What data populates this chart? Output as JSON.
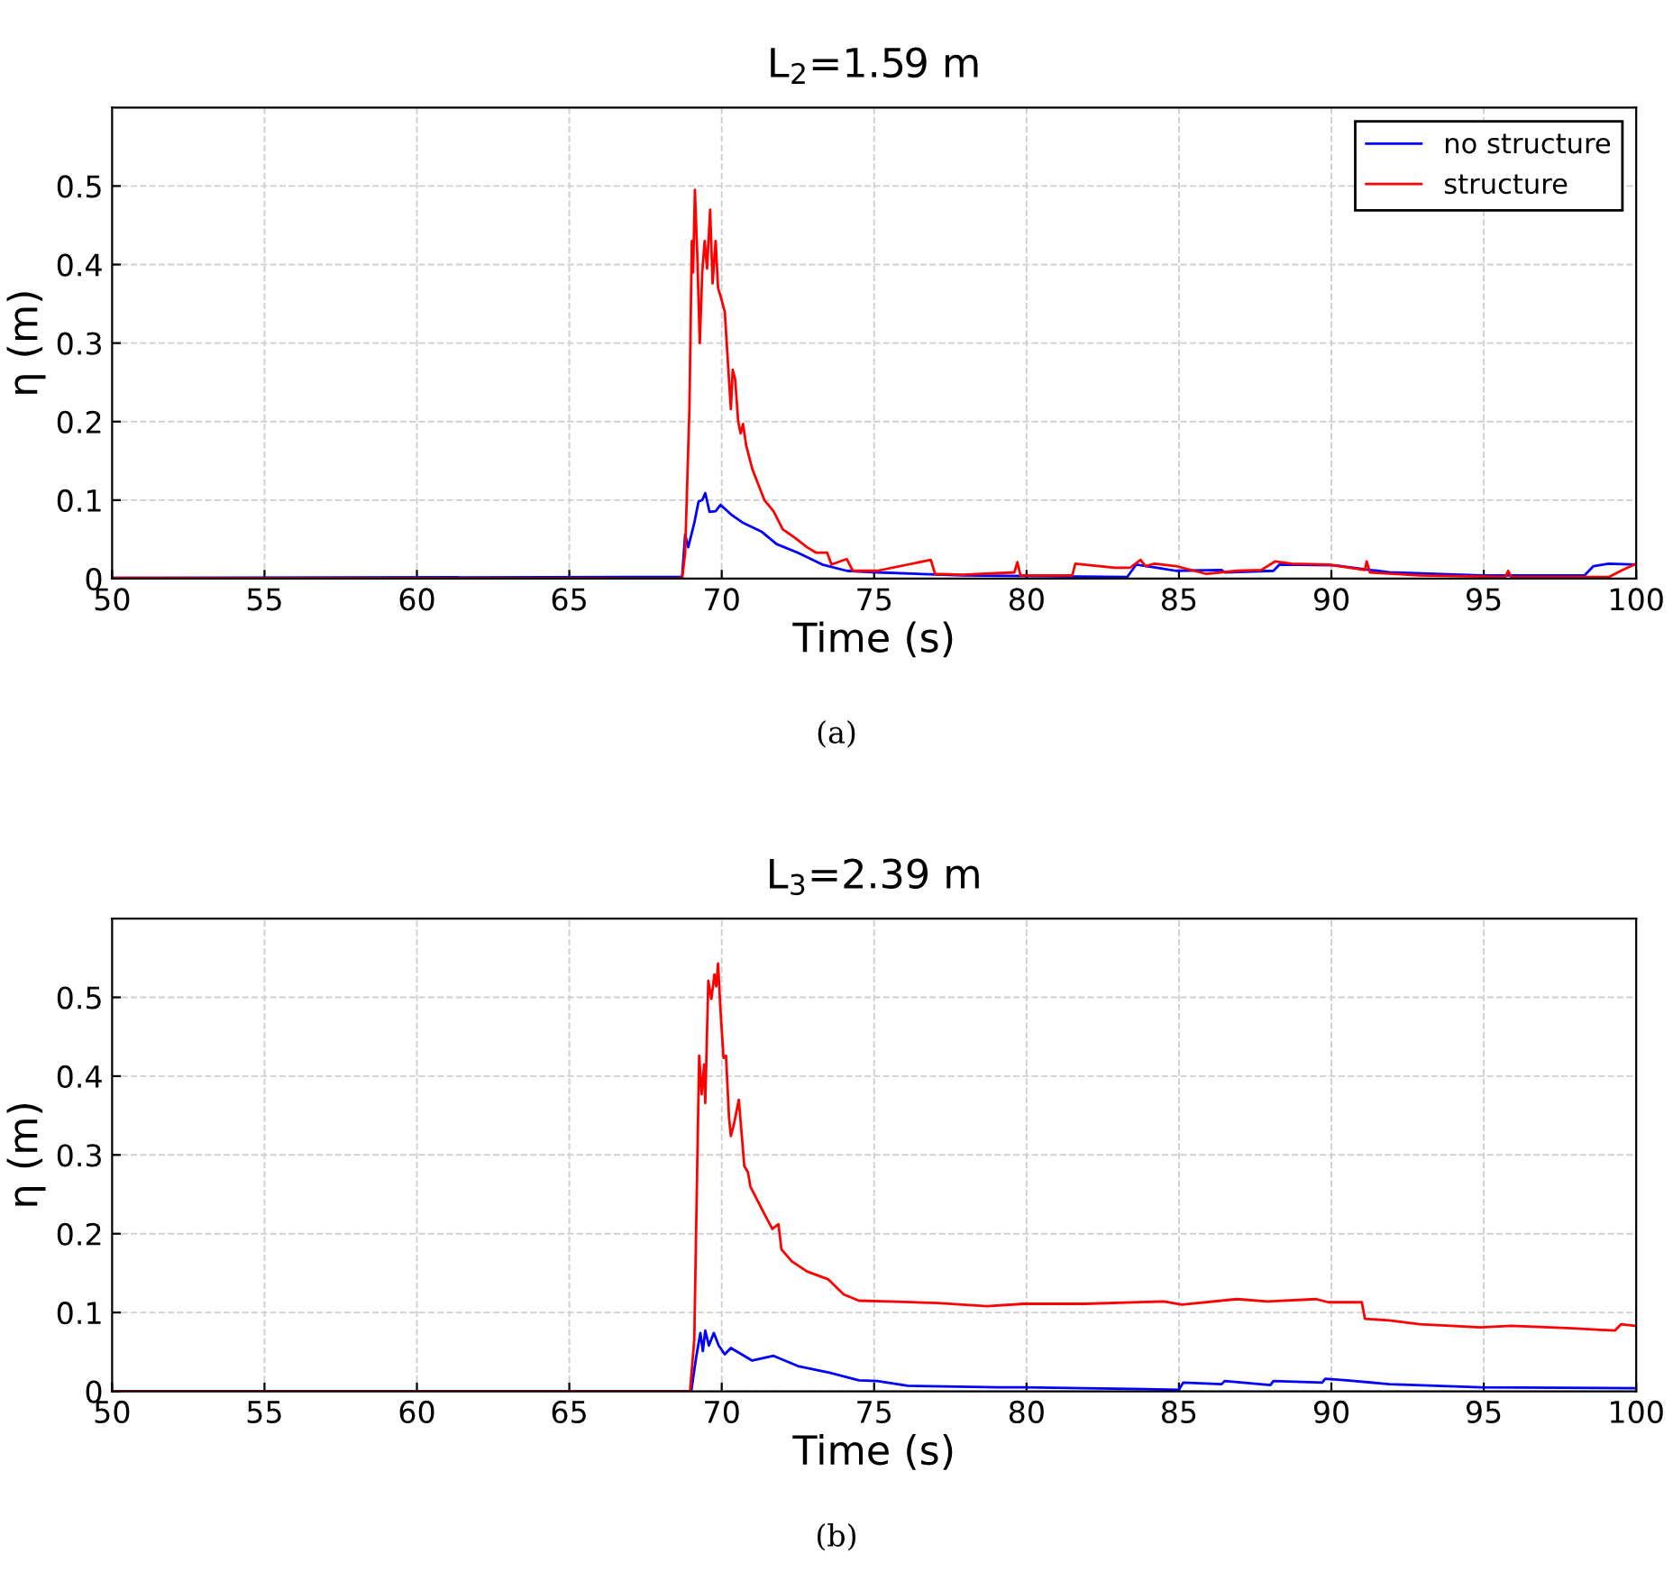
{
  "chart_data": [
    {
      "type": "line",
      "title": "L$_{2}$=1.59 m",
      "xlabel": "Time (s)",
      "ylabel": "η (m)",
      "xlim": [
        50,
        100
      ],
      "xticks": [
        50,
        55,
        60,
        65,
        70,
        75,
        80,
        85,
        90,
        95,
        100
      ],
      "ylim": [
        0,
        0.6
      ],
      "yticks": [
        0,
        0.1,
        0.2,
        0.3,
        0.4,
        0.5
      ],
      "grid": true,
      "legend": "top right",
      "annotations": [
        "(a)"
      ],
      "series": [
        {
          "name": "no structure",
          "color": "#0000ff",
          "x": [
            50,
            67.1,
            68.7,
            68.8,
            68.9,
            69.1,
            69.24,
            69.36,
            69.46,
            69.6,
            69.8,
            69.96,
            70.3,
            70.7,
            71.3,
            71.8,
            72.5,
            73.3,
            74.1,
            75.1,
            77.9,
            83.3,
            83.6,
            84.9,
            86.4,
            86.5,
            88.1,
            88.3,
            90.1,
            91.9,
            94.9,
            98.3,
            98.6,
            99.1,
            100
          ],
          "values": [
            0.001,
            0.002,
            0.002,
            0.056,
            0.04,
            0.071,
            0.098,
            0.1,
            0.109,
            0.085,
            0.086,
            0.094,
            0.082,
            0.071,
            0.06,
            0.044,
            0.033,
            0.018,
            0.01,
            0.008,
            0.004,
            0.002,
            0.018,
            0.01,
            0.011,
            0.008,
            0.01,
            0.018,
            0.017,
            0.008,
            0.004,
            0.004,
            0.016,
            0.019,
            0.018
          ]
        },
        {
          "name": "structure",
          "color": "#ff0000",
          "x": [
            50,
            68.7,
            68.8,
            68.94,
            69.02,
            69.06,
            69.12,
            69.2,
            69.28,
            69.36,
            69.44,
            69.52,
            69.62,
            69.7,
            69.8,
            69.88,
            69.96,
            70.1,
            70.2,
            70.3,
            70.36,
            70.44,
            70.54,
            70.62,
            70.7,
            70.8,
            71.0,
            71.2,
            71.4,
            71.7,
            72.0,
            72.4,
            72.8,
            73.1,
            73.46,
            73.6,
            74.1,
            74.3,
            75.1,
            76.86,
            77.0,
            77.9,
            79.6,
            79.7,
            79.8,
            81.5,
            81.6,
            82.9,
            83.4,
            83.74,
            83.9,
            84.2,
            84.9,
            85.9,
            86.9,
            87.7,
            88.16,
            88.7,
            89.9,
            91.1,
            91.16,
            91.26,
            92.9,
            95.7,
            95.8,
            95.9,
            99.1,
            99.5,
            100
          ],
          "values": [
            0.001,
            0.0,
            0.033,
            0.216,
            0.43,
            0.39,
            0.495,
            0.41,
            0.3,
            0.39,
            0.43,
            0.395,
            0.47,
            0.376,
            0.43,
            0.37,
            0.36,
            0.34,
            0.277,
            0.216,
            0.266,
            0.254,
            0.2,
            0.185,
            0.197,
            0.17,
            0.14,
            0.12,
            0.1,
            0.086,
            0.063,
            0.052,
            0.04,
            0.033,
            0.033,
            0.018,
            0.025,
            0.01,
            0.01,
            0.024,
            0.006,
            0.005,
            0.008,
            0.021,
            0.004,
            0.004,
            0.019,
            0.014,
            0.014,
            0.024,
            0.016,
            0.019,
            0.016,
            0.006,
            0.01,
            0.011,
            0.022,
            0.019,
            0.018,
            0.011,
            0.022,
            0.008,
            0.004,
            0.002,
            0.01,
            0.002,
            0.002,
            0.01,
            0.019
          ]
        }
      ]
    },
    {
      "type": "line",
      "title": "L$_{3}$=2.39 m",
      "xlabel": "Time (s)",
      "ylabel": "η (m)",
      "xlim": [
        50,
        100
      ],
      "xticks": [
        50,
        55,
        60,
        65,
        70,
        75,
        80,
        85,
        90,
        95,
        100
      ],
      "ylim": [
        0,
        0.6
      ],
      "yticks": [
        0,
        0.1,
        0.2,
        0.3,
        0.4,
        0.5
      ],
      "grid": true,
      "annotations": [
        "(b)"
      ],
      "series": [
        {
          "color": "#0000ff",
          "x": [
            50,
            69.0,
            69.16,
            69.3,
            69.38,
            69.46,
            69.58,
            69.74,
            69.9,
            70.1,
            70.3,
            71.0,
            71.7,
            72.5,
            73.5,
            74.5,
            75.1,
            76.1,
            79.1,
            79.9,
            85.0,
            85.14,
            86.4,
            86.5,
            88.0,
            88.1,
            89.7,
            89.8,
            90.5,
            91.9,
            94.9,
            100
          ],
          "values": [
            0,
            0,
            0.043,
            0.074,
            0.051,
            0.077,
            0.058,
            0.074,
            0.058,
            0.047,
            0.055,
            0.039,
            0.045,
            0.032,
            0.024,
            0.014,
            0.013,
            0.007,
            0.005,
            0.005,
            0.002,
            0.011,
            0.009,
            0.013,
            0.008,
            0.013,
            0.011,
            0.016,
            0.014,
            0.009,
            0.005,
            0.004
          ]
        },
        {
          "color": "#ff0000",
          "x": [
            50,
            68.96,
            69.1,
            69.2,
            69.26,
            69.34,
            69.42,
            69.46,
            69.56,
            69.66,
            69.76,
            69.82,
            69.88,
            69.96,
            70.06,
            70.14,
            70.24,
            70.3,
            70.4,
            70.56,
            70.66,
            70.74,
            70.86,
            70.94,
            71.2,
            71.4,
            71.66,
            71.86,
            71.96,
            72.3,
            72.8,
            73.5,
            74.0,
            74.5,
            75.5,
            77.1,
            78.7,
            79.9,
            81.9,
            84.5,
            85.1,
            86.9,
            87.9,
            89.5,
            89.9,
            91.0,
            91.1,
            91.9,
            92.9,
            94.9,
            95.9,
            97.9,
            99.3,
            99.5,
            100
          ],
          "values": [
            0,
            0,
            0.066,
            0.294,
            0.426,
            0.377,
            0.415,
            0.366,
            0.521,
            0.498,
            0.529,
            0.514,
            0.543,
            0.483,
            0.423,
            0.426,
            0.347,
            0.324,
            0.339,
            0.37,
            0.324,
            0.286,
            0.278,
            0.26,
            0.24,
            0.225,
            0.206,
            0.212,
            0.18,
            0.165,
            0.152,
            0.142,
            0.123,
            0.115,
            0.114,
            0.112,
            0.108,
            0.111,
            0.111,
            0.114,
            0.11,
            0.117,
            0.114,
            0.117,
            0.113,
            0.113,
            0.092,
            0.09,
            0.085,
            0.081,
            0.083,
            0.08,
            0.077,
            0.085,
            0.083
          ]
        }
      ]
    }
  ]
}
